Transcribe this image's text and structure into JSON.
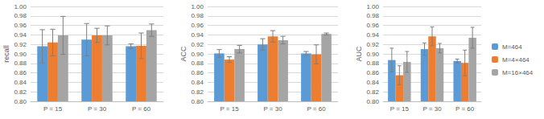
{
  "chart_data": [
    {
      "type": "bar",
      "ylabel": "recall",
      "categories": [
        "P = 15",
        "P = 30",
        "P = 60"
      ],
      "series": [
        {
          "name": "M=464",
          "color": "#5b9bd5",
          "values": [
            0.916,
            0.93,
            0.916
          ],
          "errors": [
            0.035,
            0.034,
            0.005
          ]
        },
        {
          "name": "M=4×464",
          "color": "#ed7d31",
          "values": [
            0.924,
            0.939,
            0.917
          ],
          "errors": [
            0.028,
            0.015,
            0.027
          ]
        },
        {
          "name": "M=16×464",
          "color": "#a5a5a5",
          "values": [
            0.939,
            0.939,
            0.95
          ],
          "errors": [
            0.04,
            0.02,
            0.013
          ]
        }
      ],
      "ylim": [
        0.8,
        1.0
      ],
      "yticks": [
        {
          "value": 0.8,
          "label": "0.80"
        },
        {
          "value": 0.82,
          "label": "0.82"
        },
        {
          "value": 0.84,
          "label": "0.84"
        },
        {
          "value": 0.86,
          "label": "0.86"
        },
        {
          "value": 0.88,
          "label": "0.88"
        },
        {
          "value": 0.9,
          "label": "0.90"
        },
        {
          "value": 0.92,
          "label": "0.92"
        },
        {
          "value": 0.94,
          "label": "0.94"
        },
        {
          "value": 0.96,
          "label": "0.96"
        },
        {
          "value": 0.98,
          "label": "0.98"
        },
        {
          "value": 1.0,
          "label": "1.00"
        }
      ],
      "grid": true
    },
    {
      "type": "bar",
      "ylabel": "ACC",
      "categories": [
        "P = 15",
        "P = 30",
        "P = 60"
      ],
      "series": [
        {
          "name": "M=464",
          "color": "#5b9bd5",
          "values": [
            0.901,
            0.92,
            0.901
          ],
          "errors": [
            0.008,
            0.012,
            0.004
          ]
        },
        {
          "name": "M=4×464",
          "color": "#ed7d31",
          "values": [
            0.888,
            0.937,
            0.899
          ],
          "errors": [
            0.006,
            0.012,
            0.02
          ]
        },
        {
          "name": "M=16×464",
          "color": "#a5a5a5",
          "values": [
            0.91,
            0.929,
            0.942
          ],
          "errors": [
            0.008,
            0.008,
            0.002
          ]
        }
      ],
      "ylim": [
        0.8,
        1.0
      ],
      "yticks": [
        {
          "value": 0.8,
          "label": "0.80"
        },
        {
          "value": 0.82,
          "label": "0.82"
        },
        {
          "value": 0.84,
          "label": "0.84"
        },
        {
          "value": 0.86,
          "label": "0.86"
        },
        {
          "value": 0.88,
          "label": "0.88"
        },
        {
          "value": 0.9,
          "label": "0.90"
        },
        {
          "value": 0.92,
          "label": "0.92"
        },
        {
          "value": 0.94,
          "label": "0.94"
        },
        {
          "value": 0.96,
          "label": "0.96"
        },
        {
          "value": 0.98,
          "label": "0.98"
        },
        {
          "value": 1.0,
          "label": "1.00"
        }
      ],
      "grid": true
    },
    {
      "type": "bar",
      "ylabel": "AUC",
      "categories": [
        "P = 15",
        "P = 30",
        "P = 60"
      ],
      "series": [
        {
          "name": "M=464",
          "color": "#5b9bd5",
          "values": [
            0.887,
            0.91,
            0.885
          ],
          "errors": [
            0.025,
            0.013,
            0.004
          ]
        },
        {
          "name": "M=4×464",
          "color": "#ed7d31",
          "values": [
            0.855,
            0.937,
            0.881
          ],
          "errors": [
            0.02,
            0.02,
            0.027
          ]
        },
        {
          "name": "M=16×464",
          "color": "#a5a5a5",
          "values": [
            0.883,
            0.912,
            0.934
          ],
          "errors": [
            0.022,
            0.01,
            0.022
          ]
        }
      ],
      "ylim": [
        0.8,
        1.0
      ],
      "yticks": [
        {
          "value": 0.8,
          "label": "0.80"
        },
        {
          "value": 0.82,
          "label": "0.82"
        },
        {
          "value": 0.84,
          "label": "0.84"
        },
        {
          "value": 0.86,
          "label": "0.86"
        },
        {
          "value": 0.88,
          "label": "0.88"
        },
        {
          "value": 0.9,
          "label": "0.90"
        },
        {
          "value": 0.92,
          "label": "0.92"
        },
        {
          "value": 0.94,
          "label": "0.94"
        },
        {
          "value": 0.96,
          "label": "0.96"
        },
        {
          "value": 0.98,
          "label": "0.98"
        },
        {
          "value": 1.0,
          "label": "1.00"
        }
      ],
      "grid": true,
      "legend": "right"
    }
  ]
}
